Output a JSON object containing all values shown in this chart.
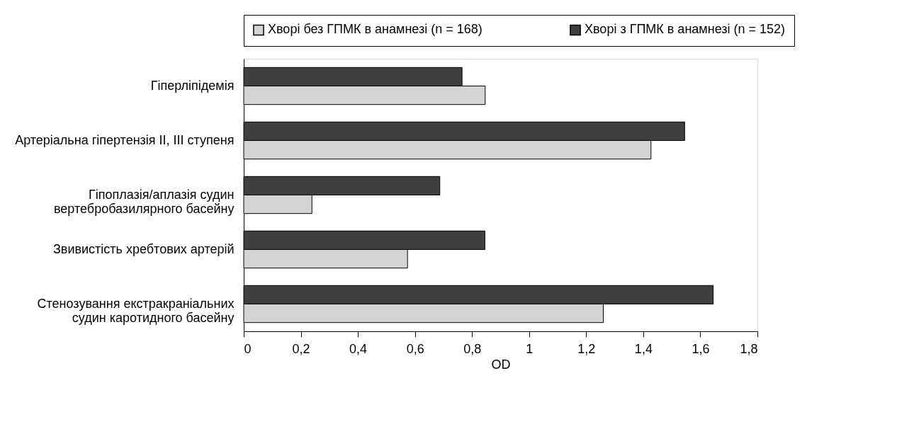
{
  "chart_data": {
    "type": "bar",
    "orientation": "horizontal",
    "xlabel": "OD",
    "categories": [
      "Гіперліпідемія",
      "Артеріальна гіпертензія II, III ступеня",
      "Гіпоплазія/аплазія судин\nвертебробазилярного басейну",
      "Звивистість хребтових артерій",
      "Стенозування екстракраніальних\nсудин каротидного басейну"
    ],
    "series": [
      {
        "name": "Хворі без ГПМК в анамнезі (n = 168)",
        "color": "#d3d4d6",
        "values": [
          0.846,
          1.427,
          0.239,
          0.574,
          1.26
        ]
      },
      {
        "name": "Хворі з ГПМК в анамнезі (n = 152)",
        "color": "#3f3f3f",
        "values": [
          0.765,
          1.545,
          0.687,
          0.845,
          1.645
        ]
      }
    ],
    "xlim": [
      0,
      1.8
    ],
    "xticks": [
      0,
      {
        "value": 0.2,
        "label": "0,2"
      },
      {
        "value": 0.4,
        "label": "0,4"
      },
      {
        "value": 0.6,
        "label": "0,6"
      },
      {
        "value": 0.8,
        "label": "0,8"
      },
      1,
      {
        "value": 1.2,
        "label": "1,2"
      },
      {
        "value": 1.4,
        "label": "1,4"
      },
      {
        "value": 1.6,
        "label": "1,6"
      },
      {
        "value": 1.8,
        "label": "1,8"
      }
    ],
    "legend": "top",
    "grid": false
  }
}
